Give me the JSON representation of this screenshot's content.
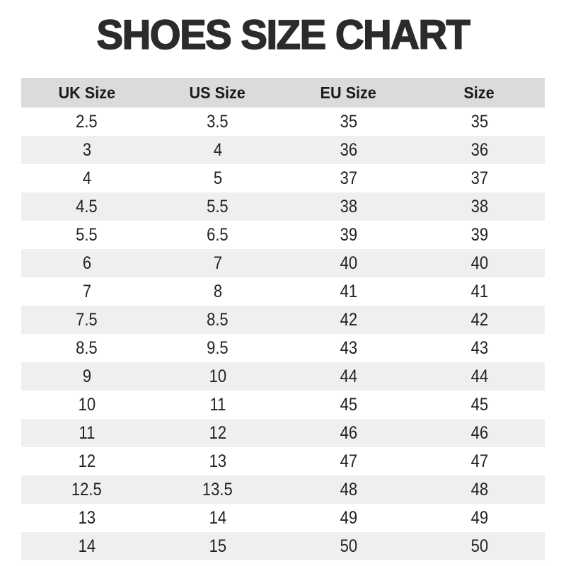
{
  "title": "SHOES SIZE CHART",
  "chart_data": {
    "type": "table",
    "title": "SHOES SIZE CHART",
    "columns": [
      "UK Size",
      "US Size",
      "EU Size",
      "Size"
    ],
    "rows": [
      [
        "2.5",
        "3.5",
        "35",
        "35"
      ],
      [
        "3",
        "4",
        "36",
        "36"
      ],
      [
        "4",
        "5",
        "37",
        "37"
      ],
      [
        "4.5",
        "5.5",
        "38",
        "38"
      ],
      [
        "5.5",
        "6.5",
        "39",
        "39"
      ],
      [
        "6",
        "7",
        "40",
        "40"
      ],
      [
        "7",
        "8",
        "41",
        "41"
      ],
      [
        "7.5",
        "8.5",
        "42",
        "42"
      ],
      [
        "8.5",
        "9.5",
        "43",
        "43"
      ],
      [
        "9",
        "10",
        "44",
        "44"
      ],
      [
        "10",
        "11",
        "45",
        "45"
      ],
      [
        "11",
        "12",
        "46",
        "46"
      ],
      [
        "12",
        "13",
        "47",
        "47"
      ],
      [
        "12.5",
        "13.5",
        "48",
        "48"
      ],
      [
        "13",
        "14",
        "49",
        "49"
      ],
      [
        "14",
        "15",
        "50",
        "50"
      ]
    ],
    "layout": {
      "stripes": "alternating, first data row white",
      "alignment": "center",
      "grid": "off"
    }
  },
  "colors": {
    "title_color": "#2b2b2b",
    "header_bg": "#dbdbdb",
    "header_text": "#1a1a1a",
    "stripe_bg": "#f0efef",
    "text_color": "#222222",
    "page_bg": "#ffffff"
  }
}
